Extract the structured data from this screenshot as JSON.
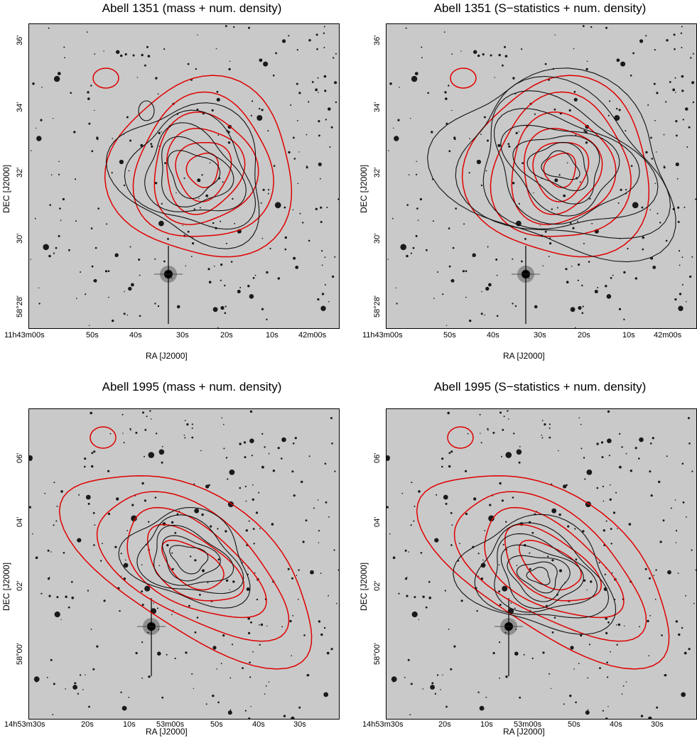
{
  "figure": {
    "panels": [
      {
        "title": "Abell 1351 (mass + num. density)",
        "ylabel": "DEC [J2000]",
        "xlabel": "RA [J2000]",
        "yticks": [
          "36'",
          "34'",
          "32'",
          "30'",
          "58°28'"
        ],
        "xticks": [
          "11h43m00s",
          "50s",
          "40s",
          "30s",
          "20s",
          "10s",
          "42m00s"
        ],
        "overlay": "mass",
        "cluster": "A1351"
      },
      {
        "title": "Abell 1351 (S−statistics + num. density)",
        "ylabel": "DEC [J2000]",
        "xlabel": "RA [J2000]",
        "yticks": [
          "36'",
          "34'",
          "32'",
          "30'",
          "58°28'"
        ],
        "xticks": [
          "11h43m00s",
          "50s",
          "40s",
          "30s",
          "20s",
          "10s",
          "42m00s"
        ],
        "overlay": "sstat",
        "cluster": "A1351"
      },
      {
        "title": "Abell 1995 (mass + num. density)",
        "ylabel": "DEC [J2000]",
        "xlabel": "RA [J2000]",
        "yticks": [
          "06'",
          "04'",
          "02'",
          "58°00'"
        ],
        "xticks": [
          "14h53m30s",
          "20s",
          "10s",
          "53m00s",
          "50s",
          "40s",
          "30s"
        ],
        "overlay": "mass",
        "cluster": "A1995"
      },
      {
        "title": "Abell 1995 (S−statistics + num. density)",
        "ylabel": "DEC [J2000]",
        "xlabel": "RA [J2000]",
        "yticks": [
          "06'",
          "04'",
          "02'",
          "58°00'"
        ],
        "xticks": [
          "14h53m30s",
          "20s",
          "10s",
          "53m00s",
          "50s",
          "40s",
          "30s"
        ],
        "overlay": "sstat",
        "cluster": "A1995"
      }
    ],
    "colors": {
      "red_contour": "#e00000",
      "black_contour": "#111111",
      "sky": "#c9c9c9"
    }
  }
}
